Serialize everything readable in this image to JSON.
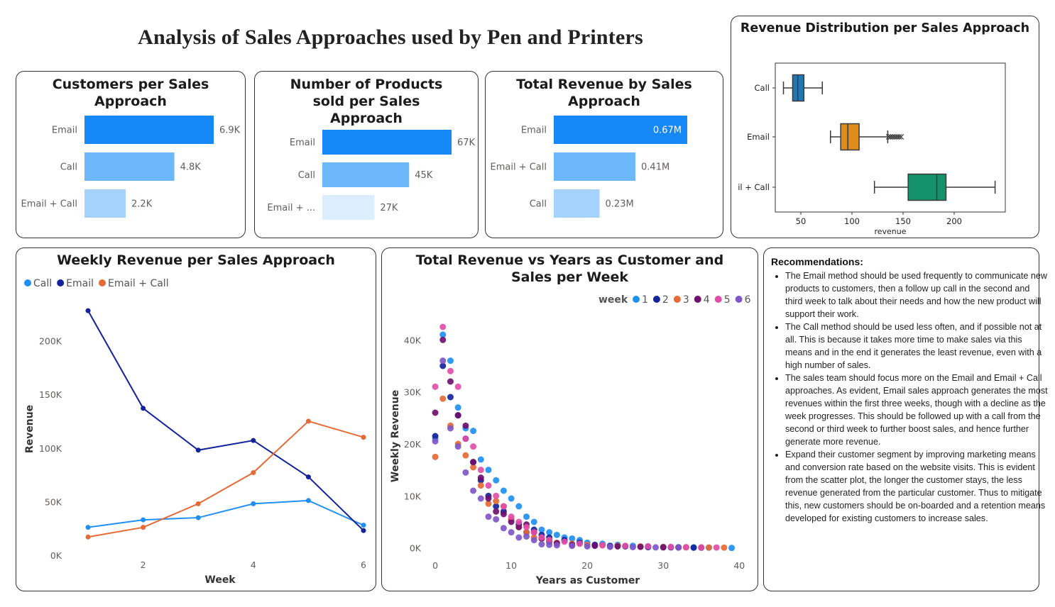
{
  "page": {
    "title": "Analysis of Sales Approaches  used by Pen and Printers"
  },
  "colors": {
    "call": "#1f8ff5",
    "email": "#13239c",
    "email_call": "#e56a35",
    "bar_strong": "#1587f7",
    "bar_mid": "#6cb8fb",
    "bar_light": "#a6d3fd",
    "bar_faint": "#dcedfd"
  },
  "cards": {
    "customers": {
      "title": "Customers per Sales Approach"
    },
    "products": {
      "title": "Number of Products sold per Sales Approach"
    },
    "revenue_total": {
      "title": "Total Revenue by Sales Approach"
    },
    "boxplot": {
      "title": "Revenue Distribution per Sales Approach"
    },
    "weekly": {
      "title": "Weekly Revenue per Sales Approach"
    },
    "scatter": {
      "title": "Total Revenue vs Years as Customer and Sales per Week"
    }
  },
  "chart_data": [
    {
      "id": "customers",
      "type": "bar",
      "orientation": "horizontal",
      "title": "Customers per Sales Approach",
      "categories": [
        "Email",
        "Call",
        "Email + Call"
      ],
      "values": [
        6900,
        4800,
        2200
      ],
      "value_labels": [
        "6.9K",
        "4.8K",
        "2.2K"
      ]
    },
    {
      "id": "products",
      "type": "bar",
      "orientation": "horizontal",
      "title": "Number of Products sold per Sales Approach",
      "categories": [
        "Email",
        "Call",
        "Email + ..."
      ],
      "values": [
        67000,
        45000,
        27000
      ],
      "value_labels": [
        "67K",
        "45K",
        "27K"
      ]
    },
    {
      "id": "revenue_total",
      "type": "bar",
      "orientation": "horizontal",
      "title": "Total Revenue by Sales Approach",
      "categories": [
        "Email",
        "Email + Call",
        "Call"
      ],
      "values": [
        0.67,
        0.41,
        0.23
      ],
      "value_labels": [
        "0.67M",
        "0.41M",
        "0.23M"
      ]
    },
    {
      "id": "boxplot",
      "type": "box",
      "title": "Revenue Distribution per Sales Approach",
      "categories": [
        "Call",
        "Email",
        "il + Call"
      ],
      "xlabel": "revenue",
      "xlim": [
        25,
        250
      ],
      "xticks": [
        50,
        100,
        150,
        200
      ],
      "colors": [
        "#1f77b4",
        "#e08c1b",
        "#14936a"
      ],
      "boxes": [
        {
          "name": "Call",
          "whisker_low": 33,
          "q1": 42,
          "median": 47,
          "q3": 53,
          "whisker_high": 71,
          "outliers": []
        },
        {
          "name": "Email",
          "whisker_low": 79,
          "q1": 89,
          "median": 96,
          "q3": 107,
          "whisker_high": 135,
          "outliers": [
            136,
            138,
            140,
            142,
            144,
            146,
            148
          ]
        },
        {
          "name": "Email + Call",
          "whisker_low": 122,
          "q1": 155,
          "median": 183,
          "q3": 192,
          "whisker_high": 240,
          "outliers": []
        }
      ]
    },
    {
      "id": "weekly",
      "type": "line",
      "title": "Weekly Revenue per Sales Approach",
      "xlabel": "Week",
      "ylabel": "Revenue",
      "x": [
        1,
        2,
        3,
        4,
        5,
        6
      ],
      "xticks": [
        2,
        4,
        6
      ],
      "ylim": [
        0,
        240000
      ],
      "yticks": [
        0,
        50000,
        100000,
        150000,
        200000
      ],
      "ytick_labels": [
        "0K",
        "50K",
        "100K",
        "150K",
        "200K"
      ],
      "legend_position": "top-left",
      "series": [
        {
          "name": "Call",
          "color": "#1f8ff5",
          "values": [
            26000,
            33000,
            35000,
            48000,
            51000,
            28000
          ]
        },
        {
          "name": "Email",
          "color": "#13239c",
          "values": [
            228000,
            137000,
            98000,
            107000,
            73000,
            23000
          ]
        },
        {
          "name": "Email + Call",
          "color": "#e56a35",
          "values": [
            17000,
            26000,
            48000,
            77000,
            125000,
            110000
          ]
        }
      ]
    },
    {
      "id": "scatter",
      "type": "scatter",
      "title": "Total Revenue vs Years as Customer and Sales per Week",
      "xlabel": "Years as Customer",
      "ylabel": "Weekly Revenue",
      "xlim": [
        -1.5,
        41
      ],
      "ylim": [
        -1000,
        44000
      ],
      "xticks": [
        0,
        10,
        20,
        30,
        40
      ],
      "yticks": [
        0,
        10000,
        20000,
        30000,
        40000
      ],
      "ytick_labels": [
        "0K",
        "10K",
        "20K",
        "30K",
        "40K"
      ],
      "legend_title": "week",
      "legend_position": "top-right",
      "series": [
        {
          "name": "1",
          "color": "#1f8ff5",
          "points": [
            [
              0,
              21000
            ],
            [
              1,
              41000
            ],
            [
              2,
              36000
            ],
            [
              3,
              27000
            ],
            [
              4,
              23000
            ],
            [
              5,
              22500
            ],
            [
              6,
              17000
            ],
            [
              7,
              15000
            ],
            [
              8,
              13000
            ],
            [
              9,
              11000
            ],
            [
              10,
              9500
            ],
            [
              11,
              8000
            ],
            [
              12,
              6000
            ],
            [
              13,
              5000
            ],
            [
              14,
              3500
            ],
            [
              15,
              3000
            ],
            [
              16,
              2500
            ],
            [
              17,
              2000
            ],
            [
              18,
              1800
            ],
            [
              19,
              1500
            ],
            [
              20,
              1000
            ],
            [
              22,
              800
            ],
            [
              24,
              600
            ],
            [
              26,
              400
            ],
            [
              28,
              300
            ],
            [
              30,
              200
            ],
            [
              32,
              150
            ],
            [
              34,
              100
            ],
            [
              36,
              50
            ],
            [
              39,
              0
            ]
          ]
        },
        {
          "name": "2",
          "color": "#13239c",
          "points": [
            [
              0,
              21500
            ],
            [
              1,
              35000
            ],
            [
              2,
              29000
            ],
            [
              3,
              25500
            ],
            [
              4,
              21000
            ],
            [
              5,
              16500
            ],
            [
              6,
              13000
            ],
            [
              7,
              10000
            ],
            [
              8,
              8000
            ],
            [
              9,
              7000
            ],
            [
              10,
              5500
            ],
            [
              11,
              4500
            ],
            [
              12,
              3000
            ],
            [
              13,
              3500
            ],
            [
              14,
              2500
            ],
            [
              15,
              2000
            ],
            [
              17,
              1500
            ],
            [
              19,
              1000
            ],
            [
              21,
              600
            ],
            [
              23,
              400
            ],
            [
              25,
              300
            ],
            [
              28,
              150
            ],
            [
              31,
              100
            ],
            [
              34,
              50
            ]
          ]
        },
        {
          "name": "3",
          "color": "#e56a35",
          "points": [
            [
              0,
              17500
            ],
            [
              1,
              28700
            ],
            [
              2,
              23500
            ],
            [
              3,
              20000
            ],
            [
              4,
              17800
            ],
            [
              5,
              15500
            ],
            [
              6,
              12000
            ],
            [
              7,
              8500
            ],
            [
              8,
              9000
            ],
            [
              9,
              8000
            ],
            [
              10,
              5500
            ],
            [
              11,
              4000
            ],
            [
              12,
              3000
            ],
            [
              13,
              2000
            ],
            [
              14,
              1800
            ],
            [
              15,
              1500
            ],
            [
              16,
              1000
            ],
            [
              18,
              800
            ],
            [
              20,
              600
            ],
            [
              22,
              500
            ],
            [
              24,
              400
            ],
            [
              27,
              300
            ],
            [
              30,
              200
            ],
            [
              33,
              100
            ],
            [
              36,
              80
            ],
            [
              38,
              60
            ]
          ]
        },
        {
          "name": "4",
          "color": "#6e106e",
          "points": [
            [
              0,
              26000
            ],
            [
              1,
              40000
            ],
            [
              2,
              32000
            ],
            [
              3,
              25500
            ],
            [
              4,
              23500
            ],
            [
              5,
              16500
            ],
            [
              6,
              13500
            ],
            [
              7,
              9500
            ],
            [
              8,
              7000
            ],
            [
              9,
              6500
            ],
            [
              10,
              5000
            ],
            [
              11,
              4000
            ],
            [
              12,
              4500
            ],
            [
              13,
              3000
            ],
            [
              14,
              1800
            ],
            [
              15,
              1200
            ],
            [
              16,
              900
            ],
            [
              18,
              600
            ],
            [
              21,
              400
            ],
            [
              24,
              300
            ],
            [
              27,
              200
            ],
            [
              30,
              100
            ],
            [
              32,
              80
            ],
            [
              35,
              50
            ]
          ]
        },
        {
          "name": "5",
          "color": "#e24ea7",
          "points": [
            [
              0,
              31000
            ],
            [
              1,
              42500
            ],
            [
              2,
              34000
            ],
            [
              3,
              31000
            ],
            [
              4,
              21000
            ],
            [
              5,
              19500
            ],
            [
              6,
              15000
            ],
            [
              7,
              12000
            ],
            [
              8,
              10000
            ],
            [
              9,
              8000
            ],
            [
              10,
              6000
            ],
            [
              11,
              5000
            ],
            [
              12,
              4000
            ],
            [
              13,
              3000
            ],
            [
              14,
              2000
            ],
            [
              15,
              1500
            ],
            [
              17,
              1200
            ],
            [
              19,
              800
            ],
            [
              22,
              500
            ],
            [
              25,
              400
            ],
            [
              28,
              300
            ],
            [
              31,
              200
            ],
            [
              33,
              150
            ],
            [
              35,
              100
            ],
            [
              37,
              80
            ]
          ]
        },
        {
          "name": "6",
          "color": "#7e57c8",
          "points": [
            [
              0,
              20500
            ],
            [
              1,
              36000
            ],
            [
              2,
              23000
            ],
            [
              3,
              19500
            ],
            [
              4,
              14500
            ],
            [
              5,
              11000
            ],
            [
              6,
              9500
            ],
            [
              7,
              6000
            ],
            [
              8,
              5500
            ],
            [
              9,
              3800
            ],
            [
              10,
              3000
            ],
            [
              11,
              2000
            ],
            [
              12,
              2200
            ],
            [
              13,
              1500
            ],
            [
              14,
              700
            ],
            [
              15,
              600
            ],
            [
              16,
              500
            ],
            [
              18,
              400
            ],
            [
              20,
              300
            ],
            [
              23,
              200
            ],
            [
              26,
              150
            ],
            [
              29,
              100
            ],
            [
              32,
              80
            ]
          ]
        }
      ]
    }
  ],
  "recommendations": {
    "title": "Recommendations:",
    "items": [
      "The Email method should be used frequently to communicate new products to customers, then a follow up call in the second and third week to talk about their needs and how the new product will support their work.",
      "The Call method should be used less often, and if possible not at all. This is because it takes more time to make sales via this means and in the end it generates the least revenue, even with a high number of sales.",
      "The sales team should focus more on the Email and Email + Call approaches. As evident, Email sales approach generates the most revenues within the first three weeks, though with a decline as the week progresses. This should be followed up with a call from the second or third week to further boost sales, and hence further generate more revenue.",
      "Expand their customer segment by improving marketing means and conversion rate based on the website visits. This is evident from the scatter plot, the longer the customer stays, the less revenue generated from the particular customer. Thus to mitigate this, new customers should be on-boarded and a retention means developed for existing customers to increase sales."
    ]
  }
}
